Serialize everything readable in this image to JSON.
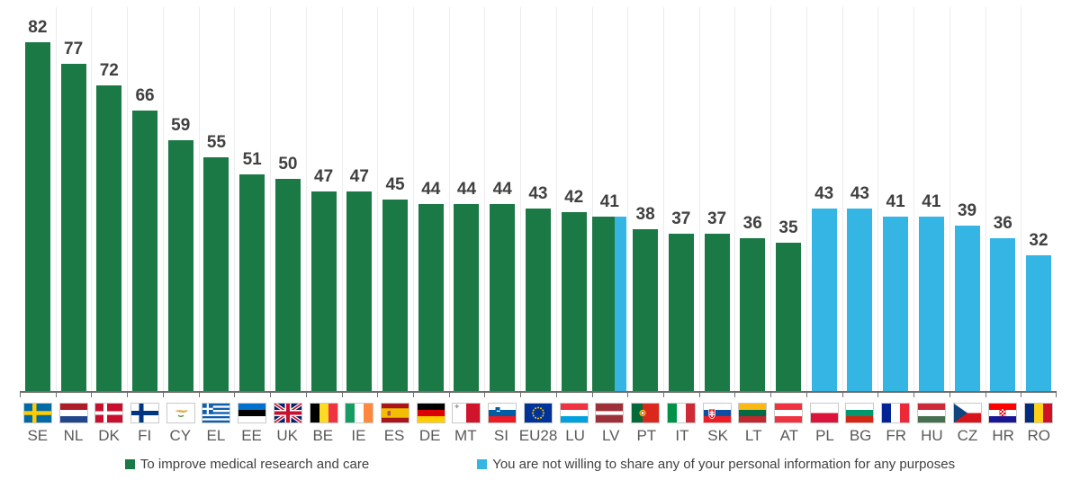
{
  "chart_data": {
    "type": "bar",
    "categories": [
      "SE",
      "NL",
      "DK",
      "FI",
      "CY",
      "EL",
      "EE",
      "UK",
      "BE",
      "IE",
      "ES",
      "DE",
      "MT",
      "SI",
      "EU28",
      "LU",
      "LV",
      "PT",
      "IT",
      "SK",
      "LT",
      "AT",
      "PL",
      "BG",
      "FR",
      "HU",
      "CZ",
      "HR",
      "RO"
    ],
    "series": [
      {
        "name": "To improve medical research and care",
        "key": "medical-research",
        "color": "#1a7945",
        "values": [
          82,
          77,
          72,
          66,
          59,
          55,
          51,
          50,
          47,
          47,
          45,
          44,
          44,
          44,
          43,
          42,
          41,
          38,
          37,
          37,
          36,
          35,
          null,
          null,
          null,
          null,
          null,
          null,
          null
        ]
      },
      {
        "name": "You are not willing to share any of your personal information for any purposes",
        "key": "not-willing",
        "color": "#35b5e4",
        "values": [
          null,
          null,
          null,
          null,
          null,
          null,
          null,
          null,
          null,
          null,
          null,
          null,
          null,
          null,
          null,
          null,
          41,
          null,
          null,
          null,
          null,
          null,
          43,
          43,
          41,
          41,
          39,
          36,
          32
        ]
      }
    ],
    "value_labels": [
      82,
      77,
      72,
      66,
      59,
      55,
      51,
      50,
      47,
      47,
      45,
      44,
      44,
      44,
      43,
      42,
      41,
      38,
      37,
      37,
      36,
      35,
      43,
      43,
      41,
      41,
      39,
      36,
      32
    ],
    "ylim": [
      0,
      92
    ],
    "grid": false,
    "legend_position": "bottom"
  },
  "flags": [
    "se",
    "nl",
    "dk",
    "fi",
    "cy",
    "el",
    "ee",
    "uk",
    "be",
    "ie",
    "es",
    "de",
    "mt",
    "si",
    "eu",
    "lu",
    "lv",
    "pt",
    "it",
    "sk",
    "lt",
    "at",
    "pl",
    "bg",
    "fr",
    "hu",
    "cz",
    "hr",
    "ro"
  ],
  "colors": {
    "value_label": "#404040",
    "country_label": "#595959",
    "axis": "#6e6e6e",
    "background": "#ffffff"
  }
}
